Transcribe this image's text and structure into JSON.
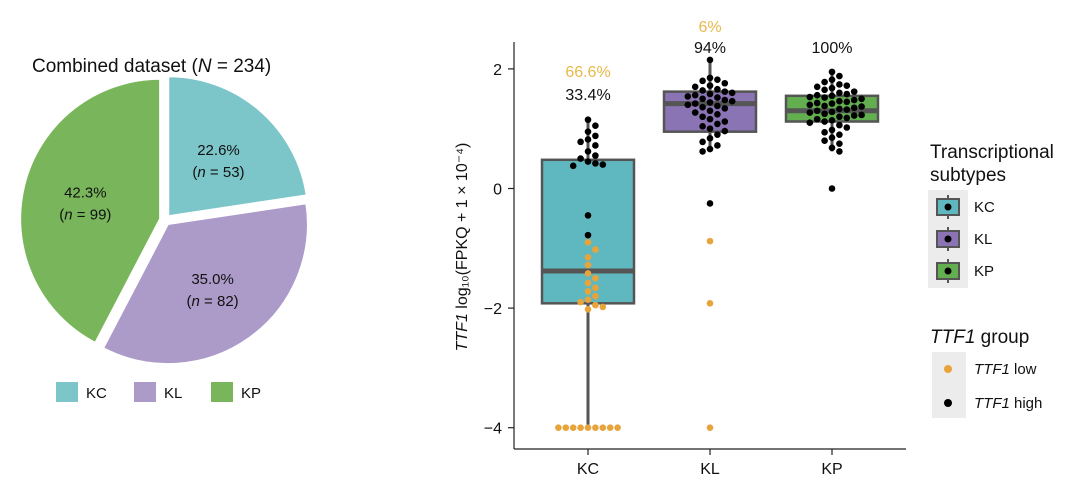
{
  "chart_data": [
    {
      "type": "pie",
      "title_prefix": "Combined dataset (",
      "title_var": "N",
      "title_suffix": " = 234)",
      "slices": [
        {
          "label": "KC",
          "percent": 22.6,
          "n": 53,
          "pct_text": "22.6%",
          "n_text": "(n = 53)",
          "color": "#7cc5c9"
        },
        {
          "label": "KL",
          "percent": 35.0,
          "n": 82,
          "pct_text": "35.0%",
          "n_text": "(n = 82)",
          "color": "#ac9bc9"
        },
        {
          "label": "KP",
          "percent": 42.3,
          "n": 99,
          "pct_text": "42.3%",
          "n_text": "(n = 99)",
          "color": "#79b65b"
        }
      ],
      "legend": [
        "KC",
        "KL",
        "KP"
      ]
    },
    {
      "type": "box",
      "ylabel_gene": "TTF1",
      "ylabel_rest": " log₁₀(FPKQ + 1 × 10⁻⁴)",
      "ylim": [
        -4.4,
        2.5
      ],
      "yticks": [
        2,
        0,
        -2,
        -4
      ],
      "ytick_labels": [
        "2",
        "0",
        "−2",
        "−4"
      ],
      "categories": [
        "KC",
        "KL",
        "KP"
      ],
      "boxes": [
        {
          "name": "KC",
          "q1": -1.92,
          "median": -1.38,
          "q3": 0.48,
          "whisker_low": -4.0,
          "whisker_high": 1.15,
          "color": "#5fb8bf",
          "low_pct": "66.6%",
          "high_pct": "33.4%",
          "high_points": [
            1.15,
            1.05,
            0.95,
            0.88,
            0.82,
            0.78,
            0.72,
            0.62,
            0.55,
            0.5,
            0.45,
            0.42,
            0.4,
            0.38,
            -0.45,
            -0.78
          ],
          "low_points": [
            -0.9,
            -1.02,
            -1.15,
            -1.28,
            -1.42,
            -1.5,
            -1.58,
            -1.66,
            -1.72,
            -1.8,
            -1.86,
            -1.9,
            -1.95,
            -1.98,
            -2.02,
            -4.0,
            -4.0,
            -4.0,
            -4.0,
            -4.0,
            -4.0,
            -4.0,
            -4.0,
            -4.0
          ]
        },
        {
          "name": "KL",
          "q1": 0.95,
          "median": 1.42,
          "q3": 1.62,
          "whisker_low": 0.62,
          "whisker_high": 2.15,
          "color": "#8a74b4",
          "low_pct": "6%",
          "high_pct": "94%",
          "high_points": [
            2.15,
            1.85,
            1.82,
            1.8,
            1.76,
            1.72,
            1.7,
            1.66,
            1.64,
            1.62,
            1.6,
            1.58,
            1.56,
            1.54,
            1.52,
            1.5,
            1.48,
            1.46,
            1.44,
            1.42,
            1.4,
            1.38,
            1.36,
            1.34,
            1.3,
            1.27,
            1.24,
            1.2,
            1.16,
            1.12,
            1.08,
            1.04,
            1.0,
            0.96,
            0.9,
            0.84,
            0.78,
            0.72,
            0.66,
            0.62,
            -0.25
          ],
          "low_points": [
            -0.88,
            -1.92,
            -4.0
          ]
        },
        {
          "name": "KP",
          "q1": 1.12,
          "median": 1.3,
          "q3": 1.55,
          "whisker_low": 0.62,
          "whisker_high": 1.95,
          "color": "#63ae4f",
          "low_pct": "",
          "high_pct": "100%",
          "high_points": [
            1.95,
            1.88,
            1.82,
            1.78,
            1.74,
            1.72,
            1.7,
            1.68,
            1.65,
            1.62,
            1.6,
            1.58,
            1.56,
            1.55,
            1.53,
            1.52,
            1.5,
            1.48,
            1.46,
            1.45,
            1.43,
            1.42,
            1.4,
            1.38,
            1.37,
            1.35,
            1.33,
            1.32,
            1.3,
            1.28,
            1.27,
            1.25,
            1.23,
            1.22,
            1.2,
            1.18,
            1.16,
            1.14,
            1.12,
            1.1,
            1.06,
            1.02,
            0.98,
            0.94,
            0.9,
            0.85,
            0.8,
            0.75,
            0.68,
            0.62,
            0.0
          ],
          "low_points": []
        }
      ],
      "legend_subtypes_title": [
        "Transcriptional",
        "subtypes"
      ],
      "legend_subtypes": [
        "KC",
        "KL",
        "KP"
      ],
      "legend_group_gene": "TTF1",
      "legend_group_rest": " group",
      "legend_group": [
        {
          "gene": "TTF1",
          "label": " low",
          "color": "#e8a33b"
        },
        {
          "gene": "TTF1",
          "label": " high",
          "color": "#000000"
        }
      ]
    }
  ],
  "colors": {
    "low": "#e8a33b",
    "high": "#000000",
    "pct_low_text": "#e8b84a"
  }
}
